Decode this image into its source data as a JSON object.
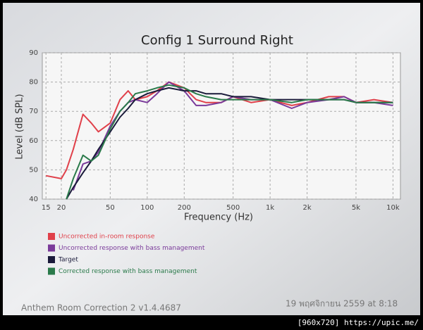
{
  "chart_data": {
    "type": "line",
    "title": "Config 1 Surround Right",
    "x_label": "Frequency (Hz)",
    "y_label": "Level (dB SPL)",
    "log_x": true,
    "grid": true,
    "xlim": [
      14,
      11500
    ],
    "ylim": [
      40,
      90
    ],
    "xticks": [
      15,
      20,
      50,
      100,
      200,
      500,
      {
        "value": 1000,
        "label": "1k"
      },
      {
        "value": 2000,
        "label": "2k"
      },
      {
        "value": 5000,
        "label": "5k"
      },
      {
        "value": 10000,
        "label": "10k"
      }
    ],
    "yticks": [
      40,
      50,
      60,
      70,
      80,
      90
    ],
    "x": [
      15,
      20,
      22,
      25,
      30,
      35,
      40,
      50,
      60,
      70,
      80,
      100,
      120,
      150,
      200,
      250,
      300,
      400,
      500,
      700,
      1000,
      1500,
      2000,
      3000,
      4000,
      5000,
      7000,
      10000
    ],
    "series": [
      {
        "name": "Uncorrected in-room response",
        "color": "#e0404a",
        "values": [
          48,
          47,
          50,
          57,
          69,
          66,
          63,
          66,
          74,
          77,
          74,
          75,
          77,
          80,
          78,
          74,
          73,
          73,
          75,
          73,
          74,
          72,
          73,
          75,
          75,
          73,
          74,
          73
        ]
      },
      {
        "name": "Uncorrected response with bass management",
        "color": "#7a3a9a",
        "values": [
          null,
          null,
          null,
          43,
          52,
          53,
          56,
          65,
          70,
          73,
          74,
          73,
          76,
          80,
          77,
          72,
          72,
          73,
          75,
          74,
          74,
          71,
          73,
          74,
          75,
          73,
          73,
          72
        ]
      },
      {
        "name": "Target",
        "color": "#1a1a3a",
        "values": [
          null,
          null,
          40,
          44,
          49,
          53,
          57,
          63,
          68,
          71,
          74,
          76,
          77,
          78,
          77,
          77,
          76,
          76,
          75,
          75,
          74,
          74,
          74,
          74,
          74,
          73,
          73,
          73
        ]
      },
      {
        "name": "Corrected response with bass management",
        "color": "#2a7a4a",
        "values": [
          null,
          null,
          40,
          47,
          55,
          53,
          55,
          64,
          70,
          73,
          76,
          77,
          78,
          79,
          78,
          76,
          75,
          74,
          74,
          74,
          74,
          73,
          74,
          74,
          74,
          73,
          73,
          73
        ]
      }
    ],
    "annotations": [
      "Anthem Room Correction 2 v1.4.4687",
      "19 พฤศจิกายน 2559 at 8:18",
      "[960x720] https://upic.me/"
    ]
  }
}
